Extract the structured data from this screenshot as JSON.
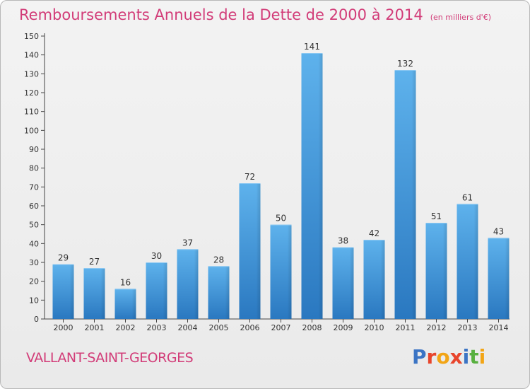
{
  "chart_data": {
    "type": "bar",
    "title": "Remboursements Annuels de la Dette de 2000 à 2014",
    "unit": "(en milliers d'€)",
    "categories": [
      "2000",
      "2001",
      "2002",
      "2003",
      "2004",
      "2005",
      "2006",
      "2007",
      "2008",
      "2009",
      "2010",
      "2011",
      "2012",
      "2013",
      "2014"
    ],
    "values": [
      29,
      27,
      16,
      30,
      37,
      28,
      72,
      50,
      141,
      38,
      42,
      132,
      51,
      61,
      43
    ],
    "ylim": [
      0,
      150
    ],
    "yticks": [
      0,
      10,
      20,
      30,
      40,
      50,
      60,
      70,
      80,
      90,
      100,
      110,
      120,
      130,
      140,
      150
    ],
    "grid": false,
    "bar_color": "#3a8fd6",
    "title_color": "#d23c78"
  },
  "footer": {
    "commune": "VALLANT-SAINT-GEORGES",
    "logo_letters": [
      {
        "ch": "P",
        "color": "#3b74c4"
      },
      {
        "ch": "r",
        "color": "#e8452c"
      },
      {
        "ch": "o",
        "color": "#f2a516"
      },
      {
        "ch": "x",
        "color": "#e8452c"
      },
      {
        "ch": "i",
        "color": "#3b74c4"
      },
      {
        "ch": "t",
        "color": "#58b040"
      },
      {
        "ch": "i",
        "color": "#f2a516"
      }
    ]
  }
}
